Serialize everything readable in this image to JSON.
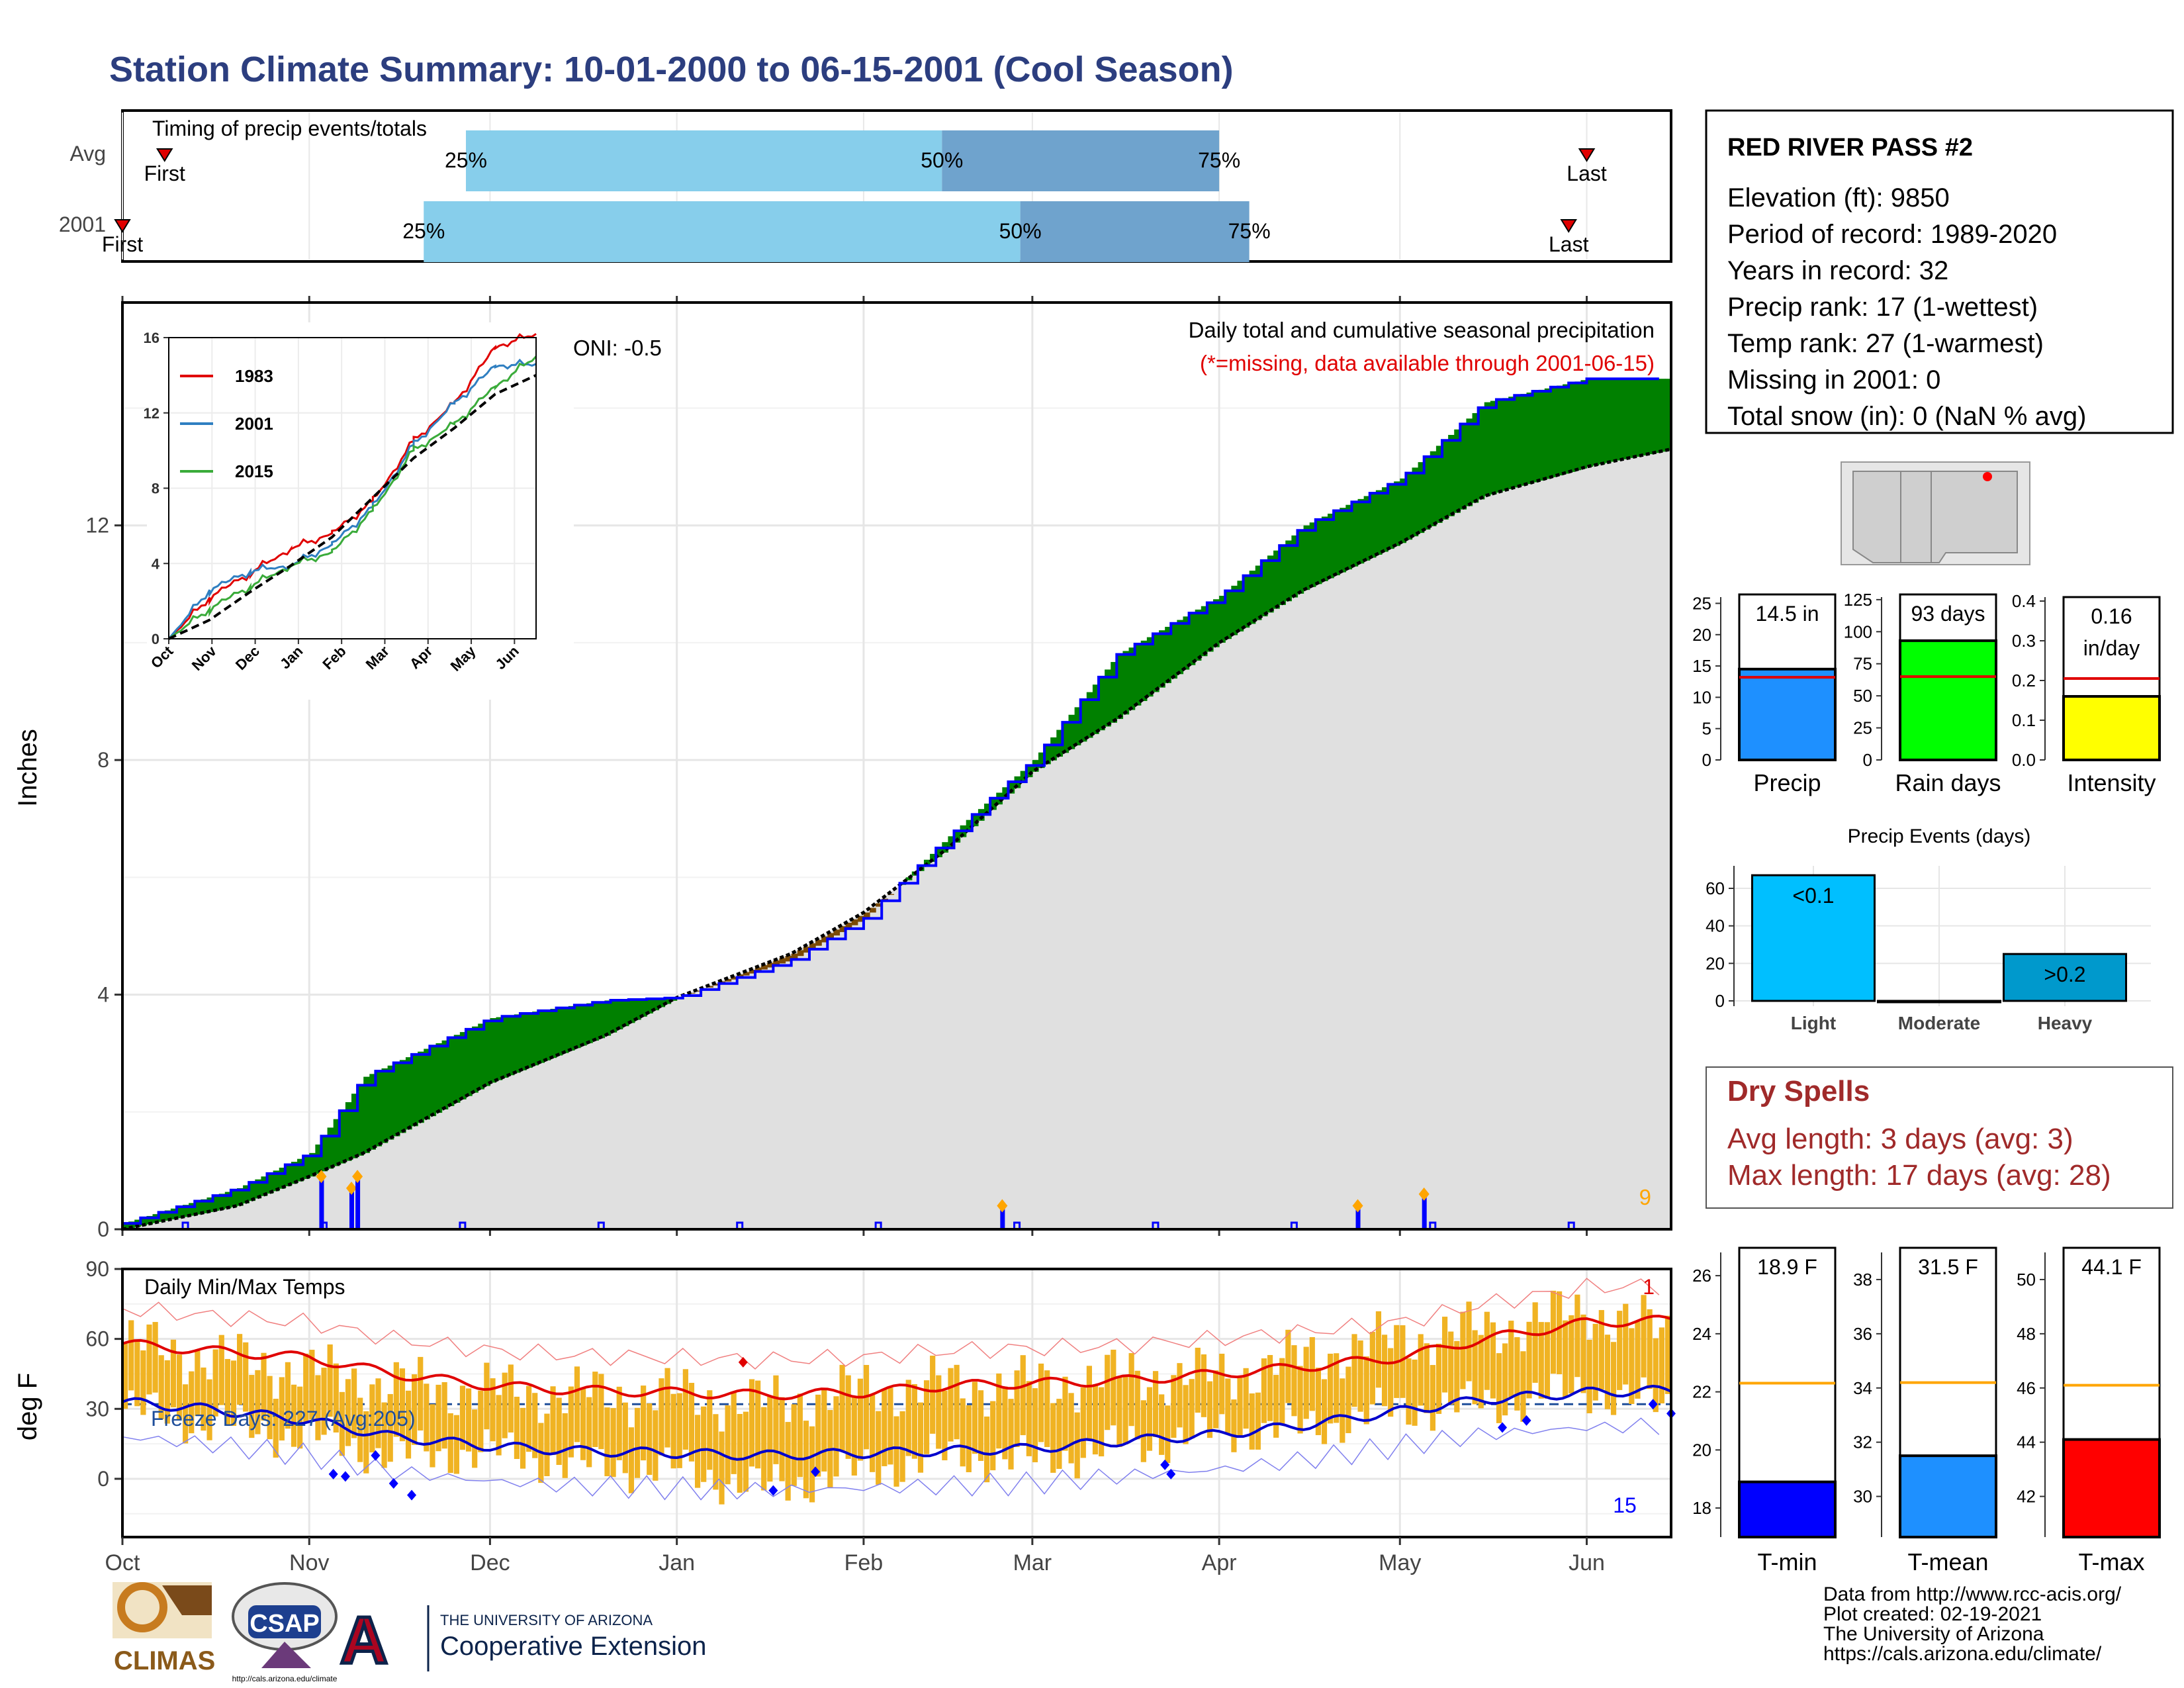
{
  "title": "Station Climate Summary: 10-01-2000 to 06-15-2001 (Cool Season)",
  "colors": {
    "title": "#2c3e7f",
    "brown": "#7b4a05",
    "green": "#008000",
    "grey": "#e0e0e0",
    "blue": "#0000ff",
    "red": "#e00000",
    "orange": "#ffa500",
    "q1": "#87ceeb",
    "q2": "#6fa3cd",
    "gold": "#f0b323",
    "maroon": "#a02a2a"
  },
  "timing": {
    "caption": "Timing of precip events/totals",
    "rows": [
      {
        "label": "Avg",
        "first_label": "First",
        "last_label": "Last",
        "q25_label": "25%",
        "q50_label": "50%",
        "q75_label": "75%",
        "first": "10-08",
        "q25": "11-27",
        "q50": "02-14",
        "q75": "04-01",
        "last": "06-01"
      },
      {
        "label": "2001",
        "first_label": "First",
        "last_label": "Last",
        "q25_label": "25%",
        "q50_label": "50%",
        "q75_label": "75%",
        "first": "10-01",
        "q25": "11-20",
        "q50": "02-27",
        "q75": "04-06",
        "last": "05-29"
      }
    ]
  },
  "precip": {
    "title": "Daily total and cumulative seasonal precipitation",
    "note": "(*=missing, data available through 2001-06-15)",
    "ylabel": "Inches",
    "oni": "ONI: -0.5",
    "corner_count": "9",
    "yticks": [
      "0",
      "4",
      "8",
      "12"
    ]
  },
  "inset": {
    "yticks": [
      "0",
      "4",
      "8",
      "12",
      "16"
    ],
    "xticks": [
      "Oct",
      "Nov",
      "Dec",
      "Jan",
      "Feb",
      "Mar",
      "Apr",
      "May",
      "Jun"
    ],
    "legend": [
      {
        "name": "1983",
        "color": "#e00000"
      },
      {
        "name": "2001",
        "color": "#2f7fc1"
      },
      {
        "name": "2015",
        "color": "#3aab3a"
      }
    ]
  },
  "temps": {
    "caption": "Daily Min/Max Temps",
    "freeze": "Freeze Days: 227 (Avg:205)",
    "ylabel": "deg F",
    "count_top": "1",
    "count_bottom": "15",
    "yticks": [
      "0",
      "30",
      "60",
      "90"
    ]
  },
  "months": [
    "Oct",
    "Nov",
    "Dec",
    "Jan",
    "Feb",
    "Mar",
    "Apr",
    "May",
    "Jun"
  ],
  "station": {
    "name": "RED RIVER PASS #2",
    "lines": [
      "Elevation (ft): 9850",
      "Period of record: 1989-2020",
      "Years in record: 32",
      "Precip rank: 17 (1-wettest)",
      "Temp rank: 27 (1-warmest)",
      "Missing in 2001: 0",
      "Total snow (in): 0 (NaN % avg)"
    ]
  },
  "bars_precip": [
    {
      "label": "Precip",
      "value_label": "14.5 in",
      "ticks": [
        "0",
        "5",
        "10",
        "15",
        "20",
        "25"
      ]
    },
    {
      "label": "Rain days",
      "value_label": "93 days",
      "ticks": [
        "0",
        "25",
        "50",
        "75",
        "100",
        "125"
      ]
    },
    {
      "label": "Intensity",
      "value_label": "0.16",
      "value_label2": "in/day",
      "ticks": [
        "0.0",
        "0.1",
        "0.2",
        "0.3",
        "0.4"
      ]
    }
  ],
  "events": {
    "title": "Precip Events (days)",
    "categories": [
      "Light",
      "Moderate",
      "Heavy"
    ],
    "labels": [
      "<0.1",
      "",
      ">0.2"
    ],
    "ticks": [
      "0",
      "20",
      "40",
      "60"
    ]
  },
  "dry": {
    "title": "Dry Spells",
    "avg": "Avg length: 3 days (avg: 3)",
    "max": "Max length: 17 days (avg: 28)"
  },
  "bars_temp": [
    {
      "label": "T-min",
      "value_label": "18.9 F",
      "ticks": [
        "18",
        "20",
        "22",
        "24",
        "26"
      ]
    },
    {
      "label": "T-mean",
      "value_label": "31.5 F",
      "ticks": [
        "30",
        "32",
        "34",
        "36",
        "38"
      ]
    },
    {
      "label": "T-max",
      "value_label": "44.1 F",
      "ticks": [
        "42",
        "44",
        "46",
        "48",
        "50"
      ]
    }
  ],
  "credits": [
    "Data from http://www.rcc-acis.org/",
    "Plot created: 02-19-2021",
    "The University of Arizona",
    "https://cals.arizona.edu/climate/"
  ],
  "logos": {
    "climas": "CLIMAS",
    "csap": "CSAP",
    "csap_url": "http://cals.arizona.edu/climate",
    "ua_top": "THE UNIVERSITY OF ARIZONA",
    "ua_bottom": "Cooperative Extension",
    "ua_letter": "A"
  },
  "chart_data": [
    {
      "type": "area",
      "title": "Daily total and cumulative seasonal precipitation",
      "ylabel": "Inches",
      "ylim": [
        0,
        15.8
      ],
      "x": [
        "10-01",
        "10-20",
        "11-01",
        "11-10",
        "12-01",
        "12-20",
        "01-01",
        "01-20",
        "02-01",
        "02-15",
        "03-01",
        "03-15",
        "04-01",
        "04-15",
        "05-01",
        "05-15",
        "06-01",
        "06-15"
      ],
      "series": [
        {
          "name": "2001",
          "values": [
            0.1,
            0.7,
            1.3,
            2.6,
            3.6,
            3.9,
            3.95,
            4.6,
            5.3,
            6.7,
            8.0,
            9.8,
            10.8,
            12.0,
            12.8,
            14.1,
            14.5,
            14.5
          ]
        },
        {
          "name": "Avg",
          "values": [
            0.0,
            0.4,
            0.9,
            1.3,
            2.5,
            3.3,
            3.95,
            4.7,
            5.4,
            6.5,
            7.8,
            8.7,
            10.0,
            10.9,
            11.7,
            12.5,
            13.0,
            13.3
          ]
        }
      ],
      "daily_precip": [
        {
          "x": "11-03",
          "y": 0.9
        },
        {
          "x": "11-08",
          "y": 0.7
        },
        {
          "x": "11-09",
          "y": 0.9
        },
        {
          "x": "02-24",
          "y": 0.4
        },
        {
          "x": "04-24",
          "y": 0.4
        },
        {
          "x": "05-05",
          "y": 0.6
        }
      ]
    },
    {
      "type": "line",
      "title": "",
      "ylim": [
        0,
        16
      ],
      "x": [
        "Oct",
        "Nov",
        "Dec",
        "Jan",
        "Feb",
        "Mar",
        "Apr",
        "May",
        "Jun",
        "Jun15"
      ],
      "series": [
        {
          "name": "1983",
          "values": [
            0,
            2.2,
            3.5,
            4.8,
            5.6,
            7.3,
            10.5,
            12.5,
            15.5,
            16.2
          ]
        },
        {
          "name": "2001",
          "values": [
            0,
            2.6,
            3.6,
            3.9,
            5.0,
            7.0,
            10.3,
            12.5,
            14.5,
            14.6
          ]
        },
        {
          "name": "2015",
          "values": [
            0,
            1.6,
            2.8,
            3.9,
            4.6,
            6.8,
            10.0,
            11.4,
            13.4,
            15.0
          ]
        },
        {
          "name": "Avg",
          "values": [
            0,
            1.0,
            2.5,
            3.9,
            5.4,
            7.5,
            9.6,
            11.2,
            13.0,
            14.0
          ]
        }
      ]
    },
    {
      "type": "bar",
      "title": "Daily Min/Max Temps",
      "ylabel": "deg F",
      "ylim": [
        -25,
        90
      ],
      "x": [
        "10-01",
        "10-15",
        "11-01",
        "11-15",
        "12-01",
        "12-15",
        "01-01",
        "01-15",
        "02-01",
        "02-15",
        "03-01",
        "03-15",
        "04-01",
        "04-15",
        "05-01",
        "05-15",
        "06-01",
        "06-15"
      ],
      "series": [
        {
          "name": "Tmax",
          "values": [
            58,
            52,
            46,
            40,
            38,
            36,
            36,
            32,
            38,
            40,
            40,
            44,
            44,
            52,
            60,
            64,
            72,
            62
          ]
        },
        {
          "name": "Tmin",
          "values": [
            30,
            24,
            18,
            10,
            12,
            6,
            4,
            -4,
            4,
            10,
            8,
            14,
            20,
            22,
            30,
            32,
            38,
            30
          ]
        },
        {
          "name": "Avg max",
          "values": [
            58,
            55,
            52,
            45,
            40,
            38,
            37,
            36,
            37,
            40,
            41,
            42,
            45,
            48,
            52,
            60,
            67,
            68
          ]
        },
        {
          "name": "Avg min",
          "values": [
            33,
            30,
            25,
            18,
            14,
            12,
            11,
            10,
            11,
            12,
            13,
            16,
            19,
            23,
            29,
            34,
            37,
            38
          ]
        }
      ]
    },
    {
      "type": "bar",
      "title": "",
      "categories": [
        "Precip"
      ],
      "values": [
        14.5
      ],
      "ylim": [
        0,
        26
      ],
      "normal": 13.2
    },
    {
      "type": "bar",
      "title": "",
      "categories": [
        "Rain days"
      ],
      "values": [
        93
      ],
      "ylim": [
        0,
        127
      ],
      "normal": 65
    },
    {
      "type": "bar",
      "title": "",
      "categories": [
        "Intensity"
      ],
      "values": [
        0.16
      ],
      "ylim": [
        0,
        0.41
      ],
      "normal": 0.205
    },
    {
      "type": "bar",
      "title": "Precip Events (days)",
      "categories": [
        "Light",
        "Moderate",
        "Heavy"
      ],
      "values": [
        67,
        0,
        25
      ],
      "ylim": [
        0,
        70
      ]
    },
    {
      "type": "bar",
      "title": "",
      "categories": [
        "T-min"
      ],
      "values": [
        18.9
      ],
      "ylim": [
        17,
        26.8
      ],
      "normal": 22.3
    },
    {
      "type": "bar",
      "title": "",
      "categories": [
        "T-mean"
      ],
      "values": [
        31.5
      ],
      "ylim": [
        28.5,
        39
      ],
      "normal": 34.2
    },
    {
      "type": "bar",
      "title": "",
      "categories": [
        "T-max"
      ],
      "values": [
        44.1
      ],
      "ylim": [
        40.5,
        51
      ],
      "normal": 46.1
    }
  ]
}
